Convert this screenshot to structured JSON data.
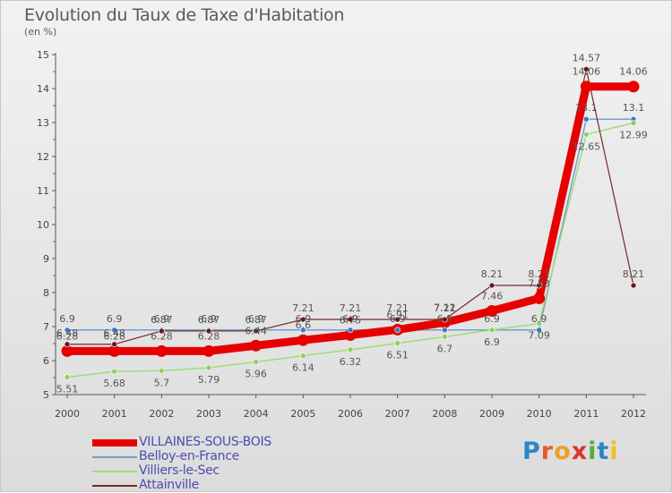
{
  "title": "Evolution du Taux de Taxe d'Habitation",
  "unit_label": "(en %)",
  "logo": {
    "text": "Proxiti",
    "letters": [
      {
        "ch": "P",
        "color": "#2a86c8"
      },
      {
        "ch": "r",
        "color": "#e65a28"
      },
      {
        "ch": "o",
        "color": "#f0a020"
      },
      {
        "ch": "x",
        "color": "#e03030"
      },
      {
        "ch": "i",
        "color": "#50b040"
      },
      {
        "ch": "t",
        "color": "#2a86c8"
      },
      {
        "ch": "i",
        "color": "#f0c020"
      }
    ]
  },
  "chart_data": {
    "type": "line",
    "title": "Evolution du Taux de Taxe d'Habitation",
    "ylabel": "(en %)",
    "xlabel": "",
    "ylim": [
      5,
      15
    ],
    "yticks": [
      5,
      6,
      7,
      8,
      9,
      10,
      11,
      12,
      13,
      14,
      15
    ],
    "x": [
      "2000",
      "2001",
      "2002",
      "2003",
      "2004",
      "2005",
      "2006",
      "2007",
      "2008",
      "2009",
      "2010",
      "2011",
      "2012"
    ],
    "grid": false,
    "legend_position": "bottom-left",
    "series": [
      {
        "name": "VILLAINES-SOUS-BOIS",
        "color": "#e60000",
        "width": 9,
        "values": [
          6.28,
          6.28,
          6.28,
          6.28,
          6.44,
          6.6,
          6.75,
          6.91,
          7.12,
          7.46,
          7.83,
          14.06,
          14.06
        ],
        "labels": [
          "6.28",
          "6.28",
          "6.28",
          "6.28",
          "6.44",
          "6.6",
          "6.75",
          "6.91",
          "7.12",
          "7.46",
          "7.83",
          "14.06",
          "14.06"
        ]
      },
      {
        "name": "Belloy-en-France",
        "color": "#6ea0d0",
        "width": 1.5,
        "values": [
          6.9,
          6.9,
          6.9,
          6.9,
          6.9,
          6.9,
          6.9,
          6.9,
          6.9,
          6.9,
          6.9,
          13.1,
          13.1
        ],
        "labels": [
          "6.9",
          "6.9",
          "6.9",
          "6.9",
          "6.9",
          "6.9",
          "6.9",
          "6.9",
          "6.9",
          "6.9",
          "6.9",
          "13.1",
          "13.1"
        ]
      },
      {
        "name": "Villiers-le-Sec",
        "color": "#a0dc78",
        "width": 1.5,
        "values": [
          5.51,
          5.68,
          5.7,
          5.79,
          5.96,
          6.14,
          6.32,
          6.51,
          6.7,
          6.9,
          7.09,
          12.65,
          12.99
        ],
        "labels": [
          "5.51",
          "5.68",
          "5.7",
          "5.79",
          "5.96",
          "6.14",
          "6.32",
          "6.51",
          "6.7",
          "6.9",
          "7.09",
          "12.65",
          "12.99"
        ]
      },
      {
        "name": "Attainville",
        "color": "#782828",
        "width": 1.2,
        "values": [
          6.48,
          6.48,
          6.87,
          6.87,
          6.87,
          7.21,
          7.21,
          7.21,
          7.21,
          8.21,
          8.21,
          14.57,
          8.21
        ],
        "labels": [
          "6.48",
          "6.48",
          "6.87",
          "6.87",
          "6.87",
          "7.21",
          "7.21",
          "7.21",
          "7.21",
          "8.21",
          "8.21",
          "14.57",
          "8.21"
        ]
      }
    ]
  }
}
